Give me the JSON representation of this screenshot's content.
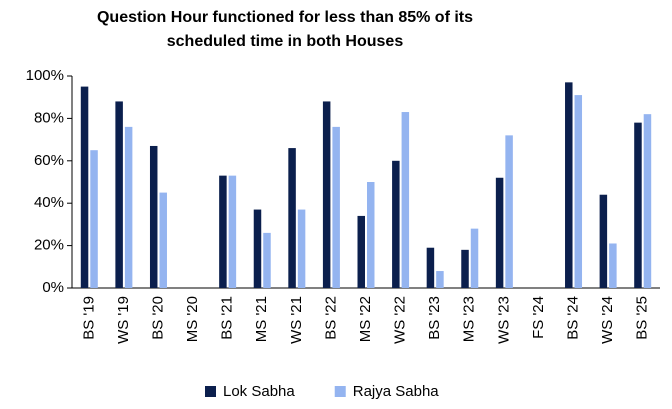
{
  "chart_data": {
    "type": "bar",
    "title_lines": [
      "Question Hour functioned for less than 85% of its",
      "scheduled time in both Houses"
    ],
    "categories": [
      "BS '19",
      "WS '19",
      "BS '20",
      "MS '20",
      "BS '21",
      "MS '21",
      "WS '21",
      "BS '22",
      "MS '22",
      "WS '22",
      "BS '23",
      "MS '23",
      "WS '23",
      "FS '24",
      "BS '24",
      "WS '24",
      "BS '25"
    ],
    "series": [
      {
        "name": "Lok Sabha",
        "color": "#0b1f4d",
        "values": [
          95,
          88,
          67,
          null,
          53,
          37,
          66,
          88,
          34,
          60,
          19,
          18,
          52,
          null,
          97,
          44,
          78
        ]
      },
      {
        "name": "Rajya Sabha",
        "color": "#94b4f0",
        "values": [
          65,
          76,
          45,
          null,
          53,
          26,
          37,
          76,
          50,
          83,
          8,
          28,
          72,
          null,
          91,
          21,
          82
        ]
      }
    ],
    "ylim": [
      0,
      100
    ],
    "yticks": [
      {
        "value": 0,
        "label": "0%"
      },
      {
        "value": 20,
        "label": "20%"
      },
      {
        "value": 40,
        "label": "40%"
      },
      {
        "value": 60,
        "label": "60%"
      },
      {
        "value": 80,
        "label": "80%"
      },
      {
        "value": 100,
        "label": "100%"
      }
    ],
    "legend": "bottom"
  }
}
